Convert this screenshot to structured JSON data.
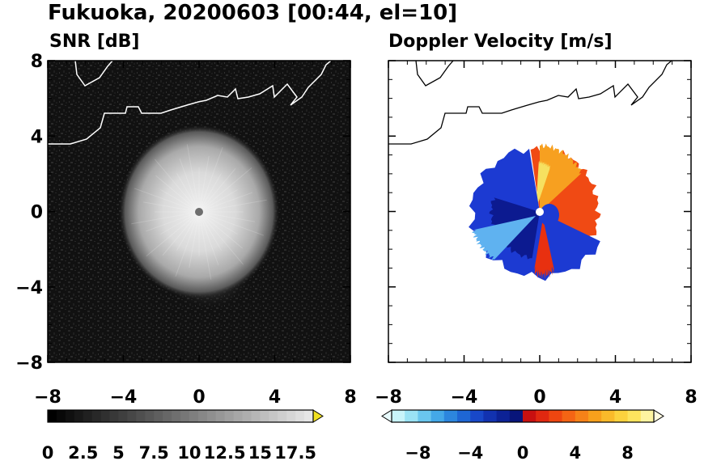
{
  "figure": {
    "title": "Fukuoka, 20200603 [00:44, el=10]"
  },
  "colors": {
    "snr_background": "#141414",
    "coast": "#ffffff",
    "coast_right": "#000000",
    "doppler_negative": "#1030c8",
    "doppler_positive": "#f04010"
  },
  "chart_data": [
    {
      "type": "heatmap",
      "subtitle": "SNR [dB]",
      "x_ticks": [
        "−8",
        "−4",
        "0",
        "4",
        "8"
      ],
      "y_ticks": [
        "8",
        "4",
        "0",
        "−4",
        "−8"
      ],
      "xlim": [
        -8,
        8
      ],
      "ylim": [
        -8,
        8
      ],
      "colorbar": {
        "ticks": [
          "0",
          "2.5",
          "5",
          "7.5",
          "10",
          "12.5",
          "15",
          "17.5"
        ],
        "values": [
          0,
          2.5,
          5,
          7.5,
          10,
          12.5,
          15,
          17.5
        ],
        "range": [
          0,
          18.75
        ],
        "extend": "max"
      },
      "echo_region": {
        "center": [
          0,
          0
        ],
        "radius_x": 3.7,
        "radius_y": 4.6,
        "peak_snr": 17
      }
    },
    {
      "type": "heatmap",
      "subtitle": "Doppler Velocity [m/s]",
      "x_ticks": [
        "−8",
        "−4",
        "0",
        "4",
        "8"
      ],
      "y_ticks": [
        "8",
        "4",
        "0",
        "−4",
        "−8"
      ],
      "xlim": [
        -8,
        8
      ],
      "ylim": [
        -8,
        8
      ],
      "colorbar": {
        "ticks": [
          "−8",
          "−4",
          "0",
          "4",
          "8"
        ],
        "values": [
          -8,
          -4,
          0,
          4,
          8
        ],
        "range": [
          -10,
          10
        ],
        "extend": "both"
      },
      "echo_region": {
        "center": [
          0,
          0
        ],
        "radius_x": 3.7,
        "radius_y": 4.0,
        "negative_side": "west",
        "positive_side": "east"
      }
    }
  ]
}
